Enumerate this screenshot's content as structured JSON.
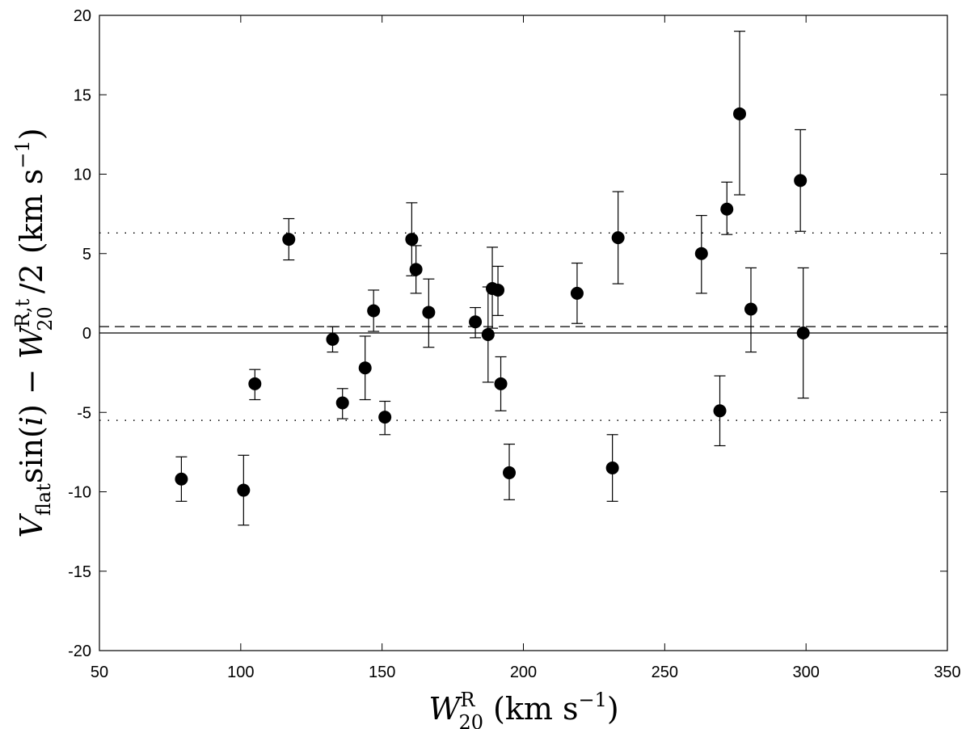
{
  "chart_data": {
    "type": "scatter",
    "title": "",
    "xlabel": {
      "main": "W",
      "sup": "R",
      "sub": "20",
      "unit": "(km s",
      "unit_exp": "−1",
      "close": ")"
    },
    "ylabel": {
      "v": "V",
      "v_sub": "flat",
      "sin": "sin(",
      "i": "i",
      "mid": ") − ",
      "w": "W",
      "w_sup": "R,t",
      "w_sub": "20",
      "tail": "/2 (km s",
      "unit_exp": "−1",
      "close": ")"
    },
    "xlim": [
      50,
      350
    ],
    "ylim": [
      -20,
      20
    ],
    "xticks": [
      50,
      100,
      150,
      200,
      250,
      300,
      350
    ],
    "yticks": [
      -20,
      -15,
      -10,
      -5,
      0,
      5,
      10,
      15,
      20
    ],
    "grid": false,
    "legend": "none",
    "reference_lines": [
      {
        "style": "solid",
        "y": 0
      },
      {
        "style": "dashed",
        "y": 0.4
      },
      {
        "style": "dotted",
        "y": 6.3
      },
      {
        "style": "dotted",
        "y": -5.5
      }
    ],
    "points": [
      {
        "x": 79,
        "y": -9.2,
        "lo": -10.6,
        "hi": -7.8
      },
      {
        "x": 101,
        "y": -9.9,
        "lo": -12.1,
        "hi": -7.7
      },
      {
        "x": 105,
        "y": -3.2,
        "lo": -4.2,
        "hi": -2.3
      },
      {
        "x": 117,
        "y": 5.9,
        "lo": 4.6,
        "hi": 7.2
      },
      {
        "x": 132.5,
        "y": -0.4,
        "lo": -1.2,
        "hi": 0.4
      },
      {
        "x": 136,
        "y": -4.4,
        "lo": -5.4,
        "hi": -3.5
      },
      {
        "x": 144,
        "y": -2.2,
        "lo": -4.2,
        "hi": -0.2
      },
      {
        "x": 147,
        "y": 1.4,
        "lo": 0.1,
        "hi": 2.7
      },
      {
        "x": 151,
        "y": -5.3,
        "lo": -6.4,
        "hi": -4.3
      },
      {
        "x": 160.5,
        "y": 5.9,
        "lo": 3.6,
        "hi": 8.2
      },
      {
        "x": 162,
        "y": 4.0,
        "lo": 2.5,
        "hi": 5.5
      },
      {
        "x": 166.5,
        "y": 1.3,
        "lo": -0.9,
        "hi": 3.4
      },
      {
        "x": 183,
        "y": 0.7,
        "lo": -0.3,
        "hi": 1.6
      },
      {
        "x": 187.5,
        "y": -0.1,
        "lo": -3.1,
        "hi": 2.9
      },
      {
        "x": 189,
        "y": 2.8,
        "lo": 0.3,
        "hi": 5.4
      },
      {
        "x": 191,
        "y": 2.7,
        "lo": 1.1,
        "hi": 4.2
      },
      {
        "x": 192,
        "y": -3.2,
        "lo": -4.9,
        "hi": -1.5
      },
      {
        "x": 195,
        "y": -8.8,
        "lo": -10.5,
        "hi": -7.0
      },
      {
        "x": 219,
        "y": 2.5,
        "lo": 0.6,
        "hi": 4.4
      },
      {
        "x": 231.5,
        "y": -8.5,
        "lo": -10.6,
        "hi": -6.4
      },
      {
        "x": 233.5,
        "y": 6.0,
        "lo": 3.1,
        "hi": 8.9
      },
      {
        "x": 263,
        "y": 5.0,
        "lo": 2.5,
        "hi": 7.4
      },
      {
        "x": 269.5,
        "y": -4.9,
        "lo": -7.1,
        "hi": -2.7
      },
      {
        "x": 272,
        "y": 7.8,
        "lo": 6.2,
        "hi": 9.5
      },
      {
        "x": 276.5,
        "y": 13.8,
        "lo": 8.7,
        "hi": 19.0
      },
      {
        "x": 280.5,
        "y": 1.5,
        "lo": -1.2,
        "hi": 4.1
      },
      {
        "x": 298,
        "y": 9.6,
        "lo": 6.4,
        "hi": 12.8
      },
      {
        "x": 299,
        "y": 0.0,
        "lo": -4.1,
        "hi": 4.1
      }
    ]
  }
}
